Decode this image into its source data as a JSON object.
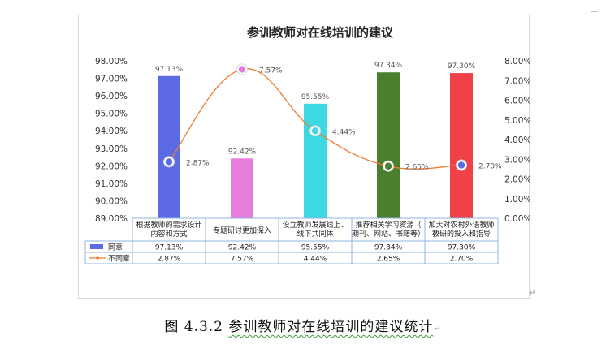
{
  "chart_data": {
    "type": "bar+line",
    "title": "参训教师对在线培训的建议",
    "categories": [
      [
        "根据教师的需求设计",
        "内容和方式"
      ],
      [
        "专题研讨更加深入"
      ],
      [
        "设立教师发展线上、",
        "线下共同体"
      ],
      [
        "推荐相关学习资源（",
        "期刊、网站、书籍等）"
      ],
      [
        "加大对农村外语教师",
        "教研的投入和指导"
      ]
    ],
    "series": [
      {
        "name": "同意",
        "type": "bar",
        "axis": "left",
        "values": [
          97.13,
          92.42,
          95.55,
          97.34,
          97.3
        ],
        "labels": [
          "97.13%",
          "92.42%",
          "95.55%",
          "97.34%",
          "97.30%"
        ],
        "colors": [
          "#5a6be3",
          "#e67ddc",
          "#3dd9e3",
          "#4b7f2e",
          "#f04148"
        ]
      },
      {
        "name": "不同意",
        "type": "line",
        "axis": "right",
        "values": [
          2.87,
          7.57,
          4.44,
          2.65,
          2.7
        ],
        "labels": [
          "2.87%",
          "7.57%",
          "4.44%",
          "2.65%",
          "2.70%"
        ],
        "line_color": "#ed7d31",
        "marker_colors": [
          "#5a6be3",
          "#e67ddc",
          "#3dd9e3",
          "#4b7f2e",
          "#5a6be3"
        ]
      }
    ],
    "y_left": {
      "min": 89,
      "max": 98,
      "ticks": [
        "89.00%",
        "90.00%",
        "91.00%",
        "92.00%",
        "93.00%",
        "94.00%",
        "95.00%",
        "96.00%",
        "97.00%",
        "98.00%"
      ]
    },
    "y_right": {
      "min": 0,
      "max": 8,
      "ticks": [
        "0.00%",
        "1.00%",
        "2.00%",
        "3.00%",
        "4.00%",
        "5.00%",
        "6.00%",
        "7.00%",
        "8.00%"
      ]
    },
    "data_table": {
      "rows": [
        {
          "name": "同意",
          "key": "bar",
          "cells": [
            "97.13%",
            "92.42%",
            "95.55%",
            "97.34%",
            "97.30%"
          ]
        },
        {
          "name": "不同意",
          "key": "line",
          "cells": [
            "2.87%",
            "7.57%",
            "4.44%",
            "2.65%",
            "2.70%"
          ]
        }
      ]
    },
    "grid": false,
    "legend": "in data table"
  },
  "caption": {
    "prefix": "图 4.3.2 ",
    "main": "参训教师对在线培训的建议统计",
    "mark": "↵"
  },
  "paragraph_mark": "↵"
}
